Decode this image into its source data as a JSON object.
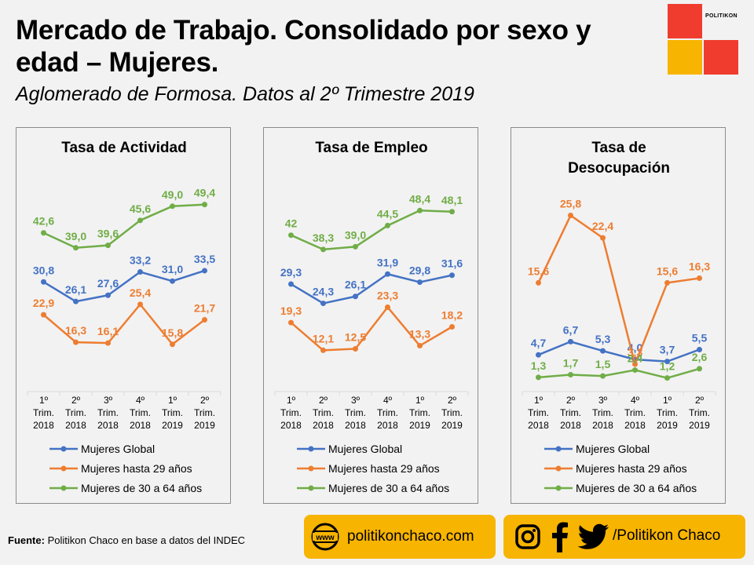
{
  "header": {
    "title": "Mercado de Trabajo. Consolidado por sexo y edad – Mujeres.",
    "subtitle": "Aglomerado de Formosa. Datos al 2º Trimestre 2019",
    "logo_text": "POLITIKON"
  },
  "colors": {
    "global": "#4472c4",
    "young": "#ed7d31",
    "adult": "#70ad47",
    "accent_yellow": "#f7b400",
    "accent_red": "#f03c2f"
  },
  "chart_data": [
    {
      "type": "line",
      "title": [
        "Tasa de Actividad"
      ],
      "categories": [
        [
          "1º",
          "Trim.",
          "2018"
        ],
        [
          "2º",
          "Trim.",
          "2018"
        ],
        [
          "3º",
          "Trim.",
          "2018"
        ],
        [
          "4º",
          "Trim.",
          "2018"
        ],
        [
          "1º",
          "Trim.",
          "2019"
        ],
        [
          "2º",
          "Trim.",
          "2019"
        ]
      ],
      "ylim": [
        5,
        55
      ],
      "series": [
        {
          "name": "Mujeres Global",
          "color": "#4472c4",
          "values": [
            30.8,
            26.1,
            27.6,
            33.2,
            31.0,
            33.5
          ],
          "labels": [
            "30,8",
            "26,1",
            "27,6",
            "33,2",
            "31,0",
            "33,5"
          ]
        },
        {
          "name": "Mujeres hasta 29 años",
          "color": "#ed7d31",
          "values": [
            22.9,
            16.3,
            16.1,
            25.4,
            15.8,
            21.7
          ],
          "labels": [
            "22,9",
            "16,3",
            "16,1",
            "25,4",
            "15,8",
            "21,7"
          ]
        },
        {
          "name": "Mujeres de 30 a 64 años",
          "color": "#70ad47",
          "values": [
            42.6,
            39.0,
            39.6,
            45.6,
            49.0,
            49.4
          ],
          "labels": [
            "42,6",
            "39,0",
            "39,6",
            "45,6",
            "49,0",
            "49,4"
          ]
        }
      ]
    },
    {
      "type": "line",
      "title": [
        "Tasa de Empleo"
      ],
      "categories": [
        [
          "1º",
          "Trim.",
          "2018"
        ],
        [
          "2º",
          "Trim.",
          "2018"
        ],
        [
          "3º",
          "Trim.",
          "2018"
        ],
        [
          "4º",
          "Trim.",
          "2018"
        ],
        [
          "1º",
          "Trim.",
          "2019"
        ],
        [
          "2º",
          "Trim.",
          "2019"
        ]
      ],
      "ylim": [
        2,
        56
      ],
      "series": [
        {
          "name": "Mujeres Global",
          "color": "#4472c4",
          "values": [
            29.3,
            24.3,
            26.1,
            31.9,
            29.8,
            31.6
          ],
          "labels": [
            "29,3",
            "24,3",
            "26,1",
            "31,9",
            "29,8",
            "31,6"
          ]
        },
        {
          "name": "Mujeres hasta 29 años",
          "color": "#ed7d31",
          "values": [
            19.3,
            12.1,
            12.5,
            23.3,
            13.3,
            18.2
          ],
          "labels": [
            "19,3",
            "12,1",
            "12,5",
            "23,3",
            "13,3",
            "18,2"
          ]
        },
        {
          "name": "Mujeres de 30 a 64 años",
          "color": "#70ad47",
          "values": [
            42.0,
            38.3,
            39.0,
            44.5,
            48.4,
            48.1
          ],
          "labels": [
            "42",
            "38,3",
            "39,0",
            "44,5",
            "48,4",
            "48,1"
          ]
        }
      ]
    },
    {
      "type": "line",
      "title": [
        "Tasa de",
        "Desocupación"
      ],
      "categories": [
        [
          "1º",
          "Trim.",
          "2018"
        ],
        [
          "2º",
          "Trim.",
          "2018"
        ],
        [
          "3º",
          "Trim.",
          "2018"
        ],
        [
          "4º",
          "Trim.",
          "2018"
        ],
        [
          "1º",
          "Trim.",
          "2019"
        ],
        [
          "2º",
          "Trim.",
          "2019"
        ]
      ],
      "ylim": [
        -0.5,
        28
      ],
      "series": [
        {
          "name": "Mujeres Global",
          "color": "#4472c4",
          "values": [
            4.7,
            6.7,
            5.3,
            4.0,
            3.7,
            5.5
          ],
          "labels": [
            "4,7",
            "6,7",
            "5,3",
            "4,0",
            "3,7",
            "5,5"
          ]
        },
        {
          "name": "Mujeres hasta 29 años",
          "color": "#ed7d31",
          "values": [
            15.6,
            25.8,
            22.4,
            3.3,
            15.6,
            16.3
          ],
          "labels": [
            "15,6",
            "25,8",
            "22,4",
            "3,3",
            "15,6",
            "16,3"
          ]
        },
        {
          "name": "Mujeres de 30 a 64 años",
          "color": "#70ad47",
          "values": [
            1.3,
            1.7,
            1.5,
            2.4,
            1.2,
            2.6
          ],
          "labels": [
            "1,3",
            "1,7",
            "1,5",
            "2,4",
            "1,2",
            "2,6"
          ]
        }
      ]
    }
  ],
  "footer": {
    "source_label": "Fuente:",
    "source_text": " Politikon Chaco en base a datos del INDEC",
    "website": "politikonchaco.com",
    "social_handle": "/Politikon Chaco",
    "web_icon_text": "www"
  }
}
